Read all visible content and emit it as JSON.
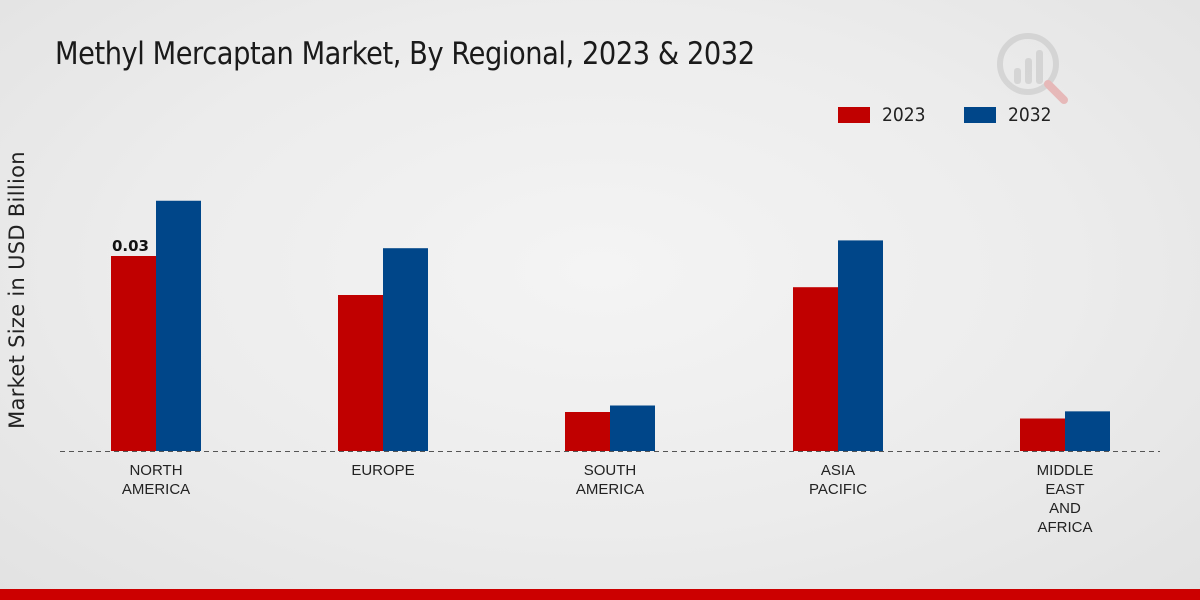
{
  "title": "Methyl Mercaptan Market, By Regional, 2023 & 2032",
  "colors": {
    "series_2023": "#c00000",
    "series_2032": "#004689",
    "bottom_bar": "#cc0000",
    "baseline": "#555555"
  },
  "chart_data": {
    "type": "bar",
    "title": "Methyl Mercaptan Market, By Regional, 2023 & 2032",
    "xlabel": "",
    "ylabel": "Market Size in USD Billion",
    "categories": [
      [
        "NORTH",
        "AMERICA"
      ],
      [
        "EUROPE"
      ],
      [
        "SOUTH",
        "AMERICA"
      ],
      [
        "ASIA",
        "PACIFIC"
      ],
      [
        "MIDDLE",
        "EAST",
        "AND",
        "AFRICA"
      ]
    ],
    "series": [
      {
        "name": "2023",
        "values": [
          0.03,
          0.024,
          0.006,
          0.0252,
          0.005
        ]
      },
      {
        "name": "2032",
        "values": [
          0.0385,
          0.0312,
          0.007,
          0.0324,
          0.0061
        ]
      }
    ],
    "data_labels": [
      {
        "series": 0,
        "index": 0,
        "text": "0.03"
      }
    ],
    "ylim": [
      0,
      0.05
    ],
    "legend_position": "top-right",
    "grid": false
  }
}
